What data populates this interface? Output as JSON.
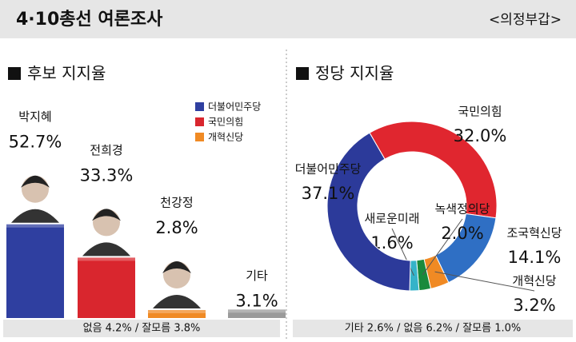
{
  "header": {
    "title": "4·10총선 여론조사",
    "source": "<의정부갑>"
  },
  "chart_data": [
    {
      "type": "bar",
      "title": "후보 지지율",
      "categories": [
        "박지혜",
        "전희경",
        "천강정",
        "기타"
      ],
      "values": [
        52.7,
        33.3,
        2.8,
        3.1
      ],
      "value_labels": [
        "52.7%",
        "33.3%",
        "2.8%",
        "3.1%"
      ],
      "colors": [
        "#2f3fa0",
        "#d9262e",
        "#f08a24",
        "#9a9a9a"
      ],
      "legend": [
        {
          "name": "더불어민주당",
          "color": "#2f3fa0"
        },
        {
          "name": "국민의힘",
          "color": "#d9262e"
        },
        {
          "name": "개혁신당",
          "color": "#f08a24"
        }
      ],
      "note": "없음 4.2% / 잘모름 3.8%"
    },
    {
      "type": "donut",
      "title": "정당 지지율",
      "categories": [
        "국민의힘",
        "조국혁신당",
        "개혁신당",
        "녹색정의당",
        "새로운미래",
        "더불어민주당"
      ],
      "values": [
        32.0,
        14.1,
        3.2,
        2.0,
        1.6,
        37.1
      ],
      "value_labels": [
        "32.0%",
        "14.1%",
        "3.2%",
        "2.0%",
        "1.6%",
        "37.1%"
      ],
      "colors": [
        "#e0262f",
        "#2f6fc4",
        "#f08a24",
        "#1a8a3c",
        "#35b3c9",
        "#2c3a9a"
      ],
      "note": "기타 2.6% / 없음 6.2% / 잘모름 1.0%"
    }
  ]
}
